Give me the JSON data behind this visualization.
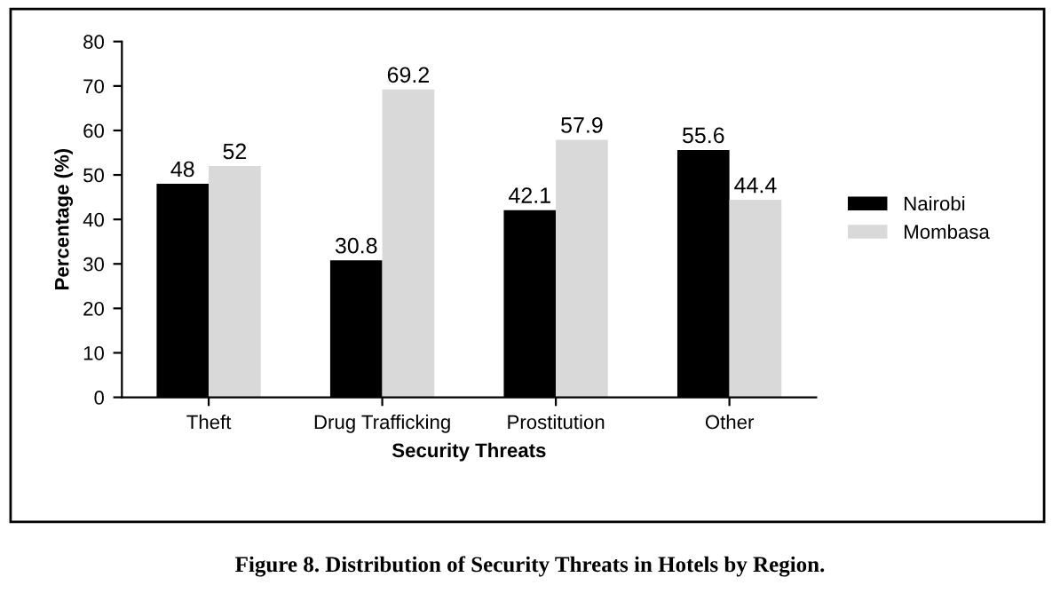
{
  "chart_data": {
    "type": "bar",
    "xlabel": "Security Threats",
    "ylabel": "Percentage (%)",
    "categories": [
      "Theft",
      "Drug Trafficking",
      "Prostitution",
      "Other"
    ],
    "series": [
      {
        "name": "Nairobi",
        "color": "#000000",
        "values": [
          48,
          30.8,
          42.1,
          55.6
        ]
      },
      {
        "name": "Mombasa",
        "color": "#d9d9d9",
        "values": [
          52,
          69.2,
          57.9,
          44.4
        ]
      }
    ],
    "ylim": [
      0,
      80
    ],
    "yticks": [
      0,
      10,
      20,
      30,
      40,
      50,
      60,
      70,
      80
    ],
    "data_labels": true,
    "grid": false,
    "legend": "right",
    "annotations": [
      "Figure 8. Distribution of Security Threats in Hotels by Region."
    ]
  }
}
